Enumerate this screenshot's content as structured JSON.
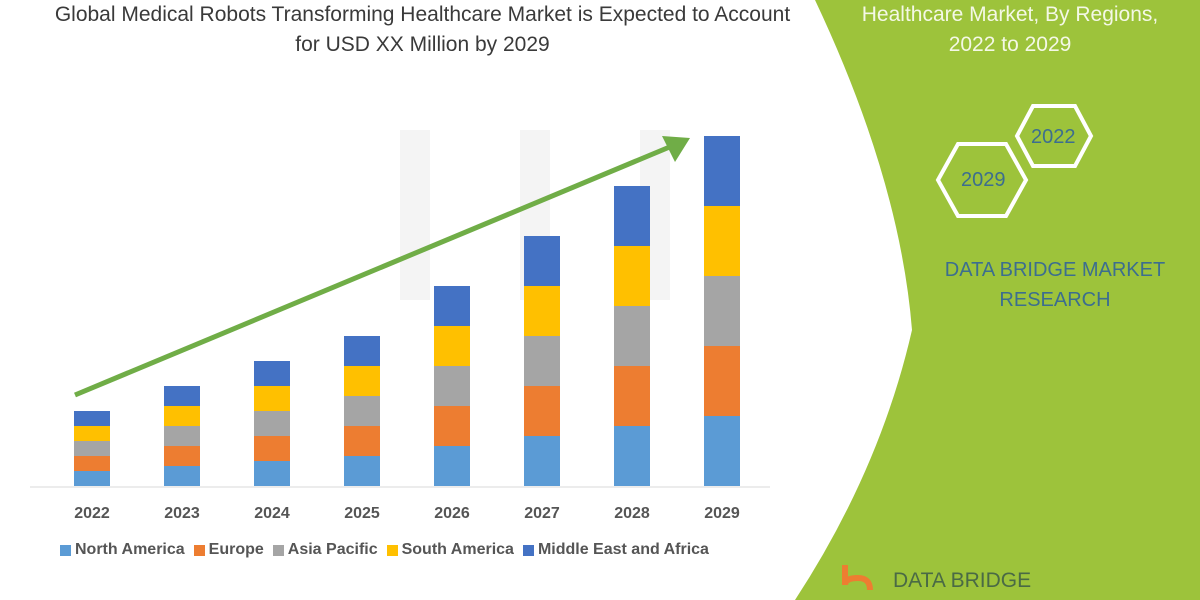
{
  "title": "Global Medical Robots Transforming Healthcare Market is Expected to Account for USD XX Million by 2029",
  "side_panel": {
    "title_line1": "Healthcare Market, By Regions,",
    "title_line2": "2022 to 2029",
    "hex_2022": "2022",
    "hex_2029": "2029",
    "brand_line1": "DATA BRIDGE MARKET",
    "brand_line2": "RESEARCH",
    "logo_text": "DATA BRIDGE",
    "panel_color": "#9dc33b"
  },
  "chart_data": {
    "type": "bar",
    "stacked": true,
    "categories": [
      "2022",
      "2023",
      "2024",
      "2025",
      "2026",
      "2027",
      "2028",
      "2029"
    ],
    "series": [
      {
        "name": "North America",
        "color": "#5b9bd5",
        "values": [
          15,
          20,
          25,
          30,
          40,
          50,
          60,
          70
        ]
      },
      {
        "name": "Europe",
        "color": "#ed7d31",
        "values": [
          15,
          20,
          25,
          30,
          40,
          50,
          60,
          70
        ]
      },
      {
        "name": "Asia Pacific",
        "color": "#a5a5a5",
        "values": [
          15,
          20,
          25,
          30,
          40,
          50,
          60,
          70
        ]
      },
      {
        "name": "South America",
        "color": "#ffc000",
        "values": [
          15,
          20,
          25,
          30,
          40,
          50,
          60,
          70
        ]
      },
      {
        "name": "Middle East and Africa",
        "color": "#4472c4",
        "values": [
          15,
          20,
          25,
          30,
          40,
          50,
          60,
          70
        ]
      }
    ],
    "ylim": [
      0,
      360
    ],
    "grid": false,
    "legend_placement": "bottom",
    "trend_arrow": {
      "color": "#70ad47",
      "direction": "up-right"
    }
  }
}
